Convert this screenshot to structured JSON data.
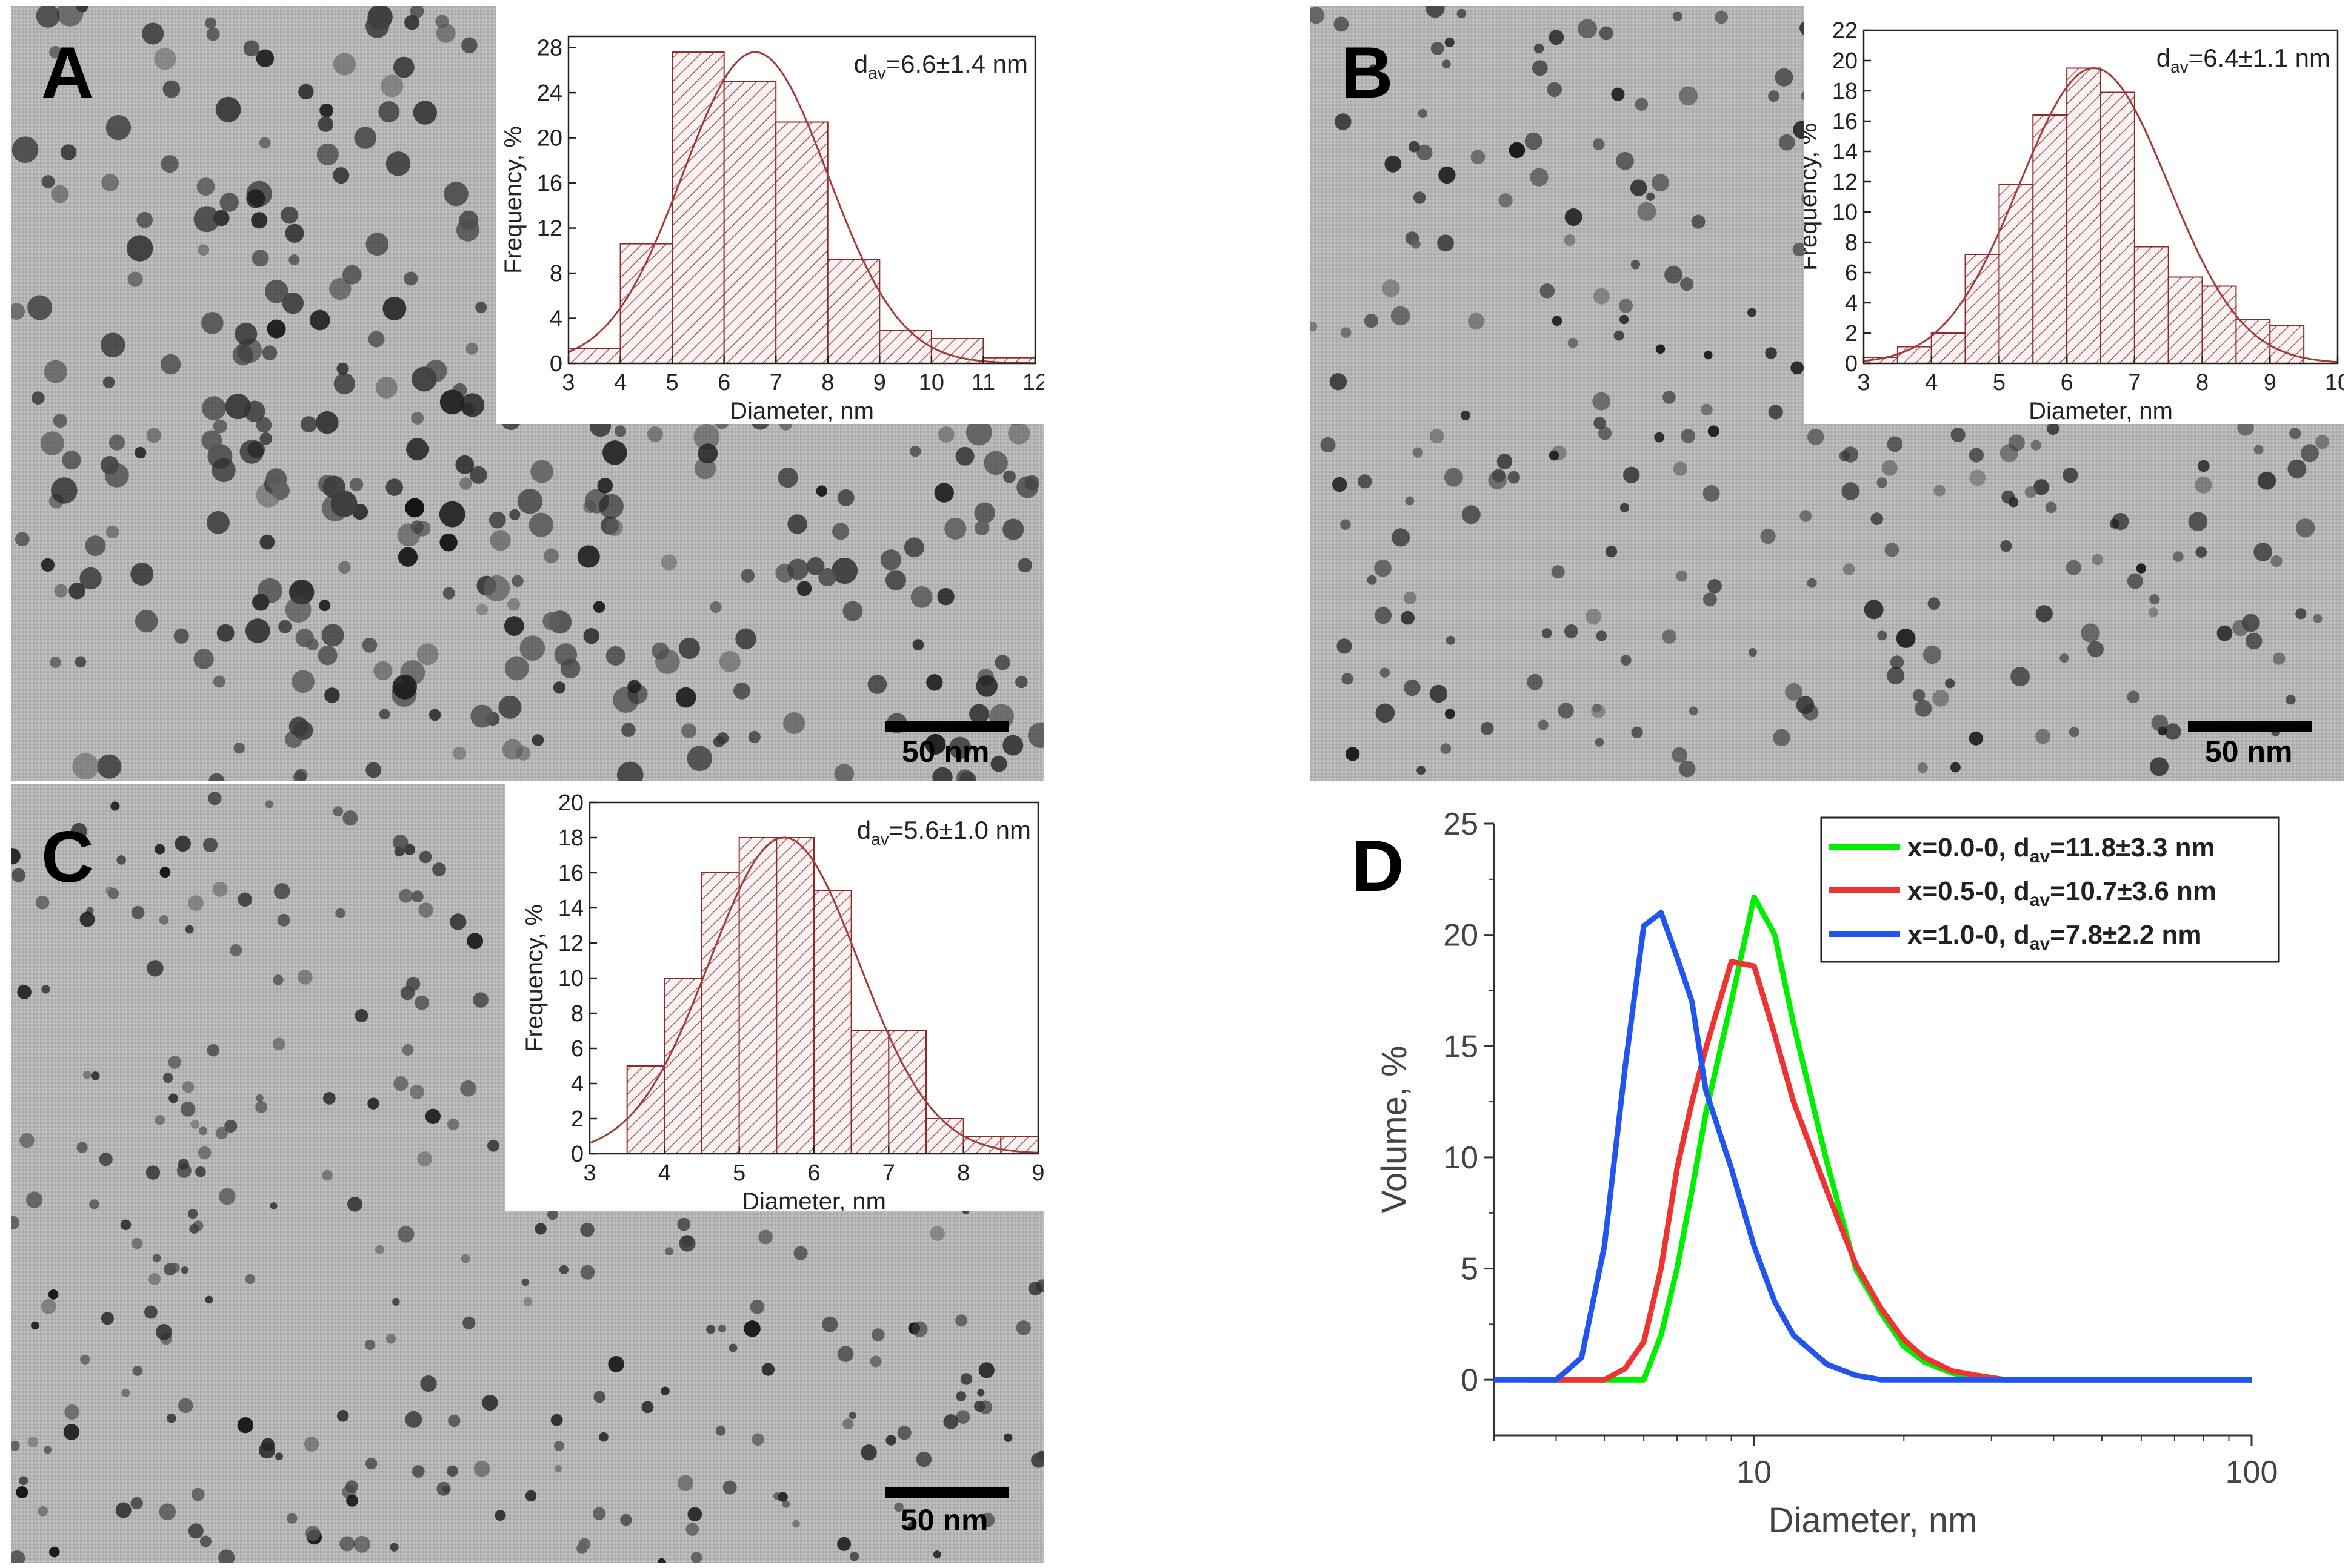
{
  "panels": {
    "A": {
      "label": "A",
      "scale_bar": "50 nm",
      "histogram": {
        "type": "bar",
        "annotation_prefix": "d",
        "annotation_sub": "av",
        "annotation_value": "=6.6±1.4 nm",
        "xlabel": "Diameter, nm",
        "ylabel": "Frequency, %",
        "xlim": [
          3,
          12
        ],
        "ylim": [
          0,
          29
        ],
        "xticks": [
          3,
          4,
          5,
          6,
          7,
          8,
          9,
          10,
          11,
          12
        ],
        "yticks": [
          0,
          4,
          8,
          12,
          16,
          20,
          24,
          28
        ],
        "bin_width": 1,
        "bin_starts": [
          3,
          4,
          5,
          6,
          7,
          8,
          9,
          10,
          11
        ],
        "values": [
          1.3,
          10.6,
          27.6,
          25.0,
          21.4,
          9.2,
          2.9,
          2.2,
          0.5
        ],
        "fit": {
          "mean": 6.6,
          "sd": 1.4,
          "peak": 27.6
        }
      }
    },
    "B": {
      "label": "B",
      "scale_bar": "50 nm",
      "histogram": {
        "type": "bar",
        "annotation_prefix": "d",
        "annotation_sub": "av",
        "annotation_value": "=6.4±1.1 nm",
        "xlabel": "Diameter, nm",
        "ylabel": "Frequency, %",
        "xlim": [
          3,
          10
        ],
        "ylim": [
          0,
          22
        ],
        "xticks": [
          3,
          4,
          5,
          6,
          7,
          8,
          9,
          10
        ],
        "yticks": [
          0,
          2,
          4,
          6,
          8,
          10,
          12,
          14,
          16,
          18,
          20,
          22
        ],
        "bin_width": 0.5,
        "bin_starts": [
          3.0,
          3.5,
          4.0,
          4.5,
          5.0,
          5.5,
          6.0,
          6.5,
          7.0,
          7.5,
          8.0,
          8.5,
          9.0
        ],
        "values": [
          0.4,
          1.1,
          2.0,
          7.2,
          11.8,
          16.4,
          19.5,
          17.9,
          7.7,
          5.7,
          5.1,
          2.9,
          2.5
        ],
        "fit": {
          "mean": 6.4,
          "sd": 1.1,
          "peak": 19.5
        }
      }
    },
    "C": {
      "label": "C",
      "scale_bar": "50 nm",
      "histogram": {
        "type": "bar",
        "annotation_prefix": "d",
        "annotation_sub": "av",
        "annotation_value": "=5.6±1.0 nm",
        "xlabel": "Diameter, nm",
        "ylabel": "Frequency, %",
        "xlim": [
          3,
          9
        ],
        "ylim": [
          0,
          20
        ],
        "xticks": [
          3,
          4,
          5,
          6,
          7,
          8,
          9
        ],
        "yticks": [
          0,
          2,
          4,
          6,
          8,
          10,
          12,
          14,
          16,
          18,
          20
        ],
        "bin_width": 0.5,
        "bin_starts": [
          3.5,
          4.0,
          4.5,
          5.0,
          5.5,
          6.0,
          6.5,
          7.0,
          7.5,
          8.0,
          8.5
        ],
        "values": [
          5.0,
          10.0,
          16.0,
          18.0,
          18.0,
          15.0,
          7.0,
          7.0,
          2.0,
          1.0,
          1.0
        ],
        "fit": {
          "mean": 5.6,
          "sd": 1.0,
          "peak": 18.0
        }
      }
    }
  },
  "chart_data": {
    "type": "line",
    "panel_label": "D",
    "xlabel": "Diameter, nm",
    "ylabel": "Volume, %",
    "xscale": "log",
    "xlim": [
      3,
      100
    ],
    "ylim": [
      -2.5,
      25
    ],
    "xticks": [
      10,
      100
    ],
    "xtick_labels": [
      "10",
      "100"
    ],
    "yticks": [
      0,
      5,
      10,
      15,
      20,
      25
    ],
    "legend_position": "top-right",
    "series": [
      {
        "name": "x=0.0-0, d",
        "name_sub": "av",
        "name_suffix": "=11.8±3.3 nm",
        "color": "#00ee00",
        "x": [
          3.5,
          4.0,
          4.5,
          5.0,
          5.5,
          6.0,
          6.5,
          7.0,
          7.5,
          8.0,
          9.0,
          10.0,
          11.0,
          12.0,
          14.0,
          16.0,
          18.0,
          20.0,
          22.0,
          25.0,
          28.0,
          32.0,
          40.0,
          60.0,
          100.0
        ],
        "y": [
          0,
          0,
          0,
          0,
          0,
          0,
          2.0,
          5.0,
          8.5,
          12.0,
          17.0,
          21.7,
          20.0,
          16.0,
          9.8,
          5.0,
          3.0,
          1.5,
          0.8,
          0.3,
          0.1,
          0,
          0,
          0,
          0
        ]
      },
      {
        "name": "x=0.5-0, d",
        "name_sub": "av",
        "name_suffix": "=10.7±3.6 nm",
        "color": "#ee3333",
        "x": [
          3.5,
          4.0,
          4.5,
          5.0,
          5.5,
          6.0,
          6.5,
          7.0,
          7.5,
          8.0,
          9.0,
          10.0,
          11.0,
          12.0,
          14.0,
          16.0,
          18.0,
          20.0,
          22.0,
          25.0,
          28.0,
          32.0,
          40.0,
          60.0,
          100.0
        ],
        "y": [
          0,
          0,
          0,
          0,
          0.5,
          1.7,
          5.0,
          9.5,
          12.5,
          14.9,
          18.8,
          18.6,
          15.5,
          12.5,
          8.5,
          5.2,
          3.2,
          1.8,
          1.0,
          0.4,
          0.2,
          0,
          0,
          0,
          0
        ]
      },
      {
        "name": "x=1.0-0, d",
        "name_sub": "av",
        "name_suffix": "=7.8±2.2 nm",
        "color": "#2255ee",
        "x": [
          3.0,
          3.5,
          4.0,
          4.5,
          5.0,
          5.5,
          6.0,
          6.5,
          7.0,
          7.5,
          8.0,
          9.0,
          10.0,
          11.0,
          12.0,
          14.0,
          16.0,
          18.0,
          20.0,
          25.0,
          40.0,
          100.0
        ],
        "y": [
          0,
          0,
          0,
          1.0,
          6.0,
          14.0,
          20.4,
          21.0,
          19.0,
          17.0,
          13.0,
          9.5,
          6.0,
          3.5,
          2.0,
          0.7,
          0.2,
          0,
          0,
          0,
          0,
          0
        ]
      }
    ]
  }
}
